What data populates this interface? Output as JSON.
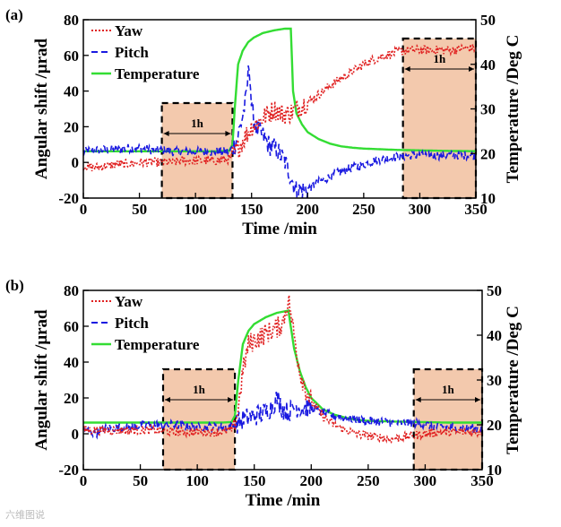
{
  "watermark": "六维图说",
  "chart_data": [
    {
      "type": "line",
      "panel_label": "(a)",
      "xlabel": "Time /min",
      "ylabel_left": "Angular shift /μrad",
      "ylabel_right": "Temperature /Deg C",
      "xlim": [
        0,
        350
      ],
      "ylim_left": [
        -20,
        80
      ],
      "ylim_right": [
        10,
        50
      ],
      "xticks": [
        "0",
        "50",
        "100",
        "150",
        "200",
        "250",
        "300",
        "350"
      ],
      "yticks_left": [
        "-20",
        "0",
        "20",
        "40",
        "60",
        "80"
      ],
      "yticks_right": [
        "10",
        "20",
        "30",
        "40",
        "50"
      ],
      "legend": [
        "Yaw",
        "Pitch",
        "Temperature"
      ],
      "annotations": [
        "1h",
        "1h"
      ],
      "windows": [
        [
          70,
          133
        ],
        [
          285,
          350
        ]
      ],
      "colors": {
        "yaw": "#e02020",
        "pitch": "#1a1ae0",
        "temperature": "#33dd33",
        "window": "#f3c9ad"
      },
      "series": [
        {
          "name": "Yaw",
          "axis": "left",
          "style": "dotted",
          "x": [
            0,
            10,
            20,
            30,
            40,
            50,
            60,
            70,
            80,
            90,
            100,
            110,
            120,
            130,
            135,
            140,
            145,
            150,
            155,
            160,
            165,
            170,
            175,
            180,
            185,
            190,
            195,
            200,
            210,
            220,
            230,
            240,
            250,
            260,
            270,
            280,
            290,
            300,
            310,
            320,
            330,
            340,
            350
          ],
          "y": [
            -2,
            -3,
            -2,
            -1,
            -1,
            0,
            0,
            0,
            0,
            1,
            1,
            1,
            1,
            2,
            5,
            10,
            15,
            20,
            22,
            25,
            27,
            30,
            28,
            27,
            28,
            30,
            32,
            34,
            38,
            43,
            47,
            51,
            55,
            58,
            60,
            62,
            63,
            63,
            63,
            63,
            63,
            64,
            64
          ]
        },
        {
          "name": "Pitch",
          "axis": "left",
          "style": "dashed",
          "x": [
            0,
            10,
            20,
            30,
            40,
            50,
            60,
            70,
            80,
            90,
            100,
            110,
            120,
            130,
            135,
            140,
            145,
            148,
            150,
            155,
            160,
            165,
            170,
            175,
            180,
            185,
            190,
            200,
            210,
            220,
            230,
            240,
            250,
            260,
            270,
            280,
            290,
            300,
            310,
            320,
            330,
            340,
            350
          ],
          "y": [
            6,
            7,
            7,
            7,
            8,
            8,
            7,
            7,
            6,
            6,
            6,
            6,
            6,
            6,
            10,
            20,
            35,
            57,
            30,
            18,
            15,
            10,
            8,
            5,
            0,
            -8,
            -16,
            -15,
            -11,
            -8,
            -5,
            -3,
            -1,
            1,
            2,
            3,
            4,
            4,
            4,
            4,
            4,
            4,
            4
          ]
        },
        {
          "name": "Temperature",
          "axis": "right",
          "style": "solid",
          "x": [
            0,
            20,
            40,
            60,
            80,
            100,
            120,
            130,
            133,
            135,
            138,
            142,
            147,
            152,
            160,
            170,
            180,
            185,
            187,
            190,
            195,
            200,
            210,
            220,
            230,
            240,
            250,
            260,
            270,
            280,
            300,
            320,
            350
          ],
          "y": [
            20.5,
            20.5,
            20.5,
            20.5,
            20.5,
            20.5,
            20.5,
            20.6,
            22,
            30,
            40,
            43,
            45,
            46,
            47,
            47.6,
            48,
            48,
            34,
            29,
            26.5,
            24.8,
            23.2,
            22.2,
            21.6,
            21.3,
            21.1,
            21.0,
            20.9,
            20.8,
            20.7,
            20.6,
            20.5
          ]
        }
      ]
    },
    {
      "type": "line",
      "panel_label": "(b)",
      "xlabel": "Time /min",
      "ylabel_left": "Angular shift /μrad",
      "ylabel_right": "Temperature /Deg C",
      "xlim": [
        0,
        350
      ],
      "ylim_left": [
        -20,
        80
      ],
      "ylim_right": [
        10,
        50
      ],
      "xticks": [
        "0",
        "50",
        "100",
        "150",
        "200",
        "250",
        "300",
        "350"
      ],
      "yticks_left": [
        "-20",
        "0",
        "20",
        "40",
        "60",
        "80"
      ],
      "yticks_right": [
        "10",
        "20",
        "30",
        "40",
        "50"
      ],
      "legend": [
        "Yaw",
        "Pitch",
        "Temperature"
      ],
      "annotations": [
        "1h",
        "1h"
      ],
      "windows": [
        [
          70,
          133
        ],
        [
          290,
          350
        ]
      ],
      "colors": {
        "yaw": "#e02020",
        "pitch": "#1a1ae0",
        "temperature": "#33dd33",
        "window": "#f3c9ad"
      },
      "series": [
        {
          "name": "Yaw",
          "axis": "left",
          "style": "dotted",
          "x": [
            0,
            20,
            40,
            60,
            80,
            100,
            120,
            130,
            135,
            140,
            145,
            150,
            160,
            170,
            175,
            180,
            185,
            190,
            195,
            200,
            210,
            220,
            230,
            240,
            250,
            260,
            270,
            280,
            290,
            300,
            310,
            320,
            330,
            340,
            350
          ],
          "y": [
            2,
            2,
            2,
            2,
            1,
            1,
            1,
            2,
            10,
            35,
            50,
            52,
            56,
            59,
            62,
            75,
            55,
            35,
            25,
            18,
            10,
            5,
            2,
            0,
            -1,
            -2,
            -3,
            -2,
            -1,
            0,
            1,
            1,
            1,
            1,
            1
          ]
        },
        {
          "name": "Pitch",
          "axis": "left",
          "style": "dashed",
          "x": [
            0,
            10,
            20,
            40,
            60,
            80,
            100,
            120,
            130,
            135,
            140,
            150,
            160,
            165,
            170,
            175,
            180,
            185,
            190,
            200,
            210,
            220,
            230,
            240,
            250,
            260,
            270,
            280,
            290,
            300,
            310,
            320,
            330,
            340,
            350
          ],
          "y": [
            3,
            0,
            3,
            4,
            5,
            5,
            4,
            4,
            4,
            6,
            8,
            10,
            12,
            15,
            20,
            14,
            12,
            15,
            15,
            14,
            12,
            10,
            9,
            8,
            7,
            7,
            6,
            6,
            6,
            5,
            4,
            4,
            3,
            3,
            3
          ]
        },
        {
          "name": "Temperature",
          "axis": "right",
          "style": "solid",
          "x": [
            0,
            20,
            40,
            60,
            80,
            100,
            120,
            130,
            133,
            136,
            140,
            145,
            150,
            160,
            170,
            180,
            182,
            185,
            190,
            195,
            200,
            210,
            220,
            230,
            240,
            250,
            260,
            280,
            300,
            320,
            350
          ],
          "y": [
            20.5,
            20.5,
            20.5,
            20.5,
            20.5,
            20.5,
            20.5,
            20.6,
            22,
            30,
            38,
            41,
            42.5,
            44,
            45,
            45.5,
            42,
            37,
            32,
            28.5,
            26,
            23.5,
            22.3,
            21.6,
            21.1,
            20.9,
            20.8,
            20.7,
            20.6,
            20.5,
            20.5
          ]
        }
      ]
    }
  ]
}
